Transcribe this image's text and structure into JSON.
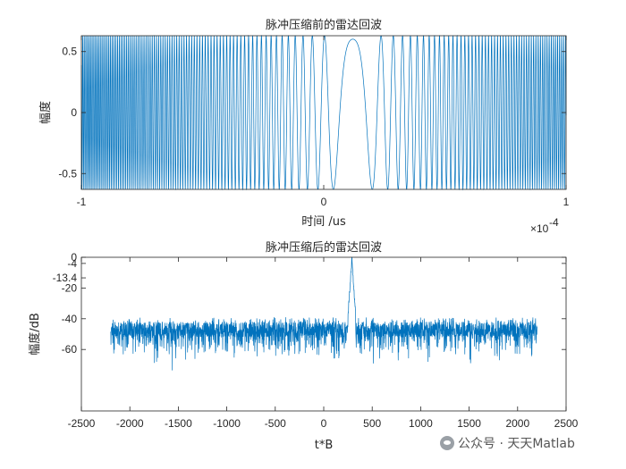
{
  "chart_data": [
    {
      "type": "line",
      "title": "脉冲压缩前的雷达回波",
      "xlabel": "时间 /us",
      "ylabel": "幅度",
      "x_exponent_label": "×10^-4",
      "xlim": [
        -1,
        1
      ],
      "ylim": [
        -0.63,
        0.63
      ],
      "x_ticks": [
        -1,
        0,
        1
      ],
      "x_tick_labels": [
        "-1",
        "0",
        "1"
      ],
      "y_ticks": [
        -0.5,
        0,
        0.5
      ],
      "y_tick_labels": [
        "-0.5",
        "0",
        "0.5"
      ],
      "series": [
        {
          "description": "linear FM chirp echo, amplitude 0.63, center near 0.12e-4",
          "amplitude": 0.63,
          "center": 0.12,
          "signal_start": -1,
          "signal_end": 1,
          "color": "#0072BD"
        }
      ]
    },
    {
      "type": "line",
      "title": "脉冲压缩后的雷达回波",
      "xlabel": "t*B",
      "ylabel": "幅度/dB",
      "xlim": [
        -2500,
        2500
      ],
      "ylim": [
        -100,
        0
      ],
      "x_ticks": [
        -2500,
        -2000,
        -1500,
        -1000,
        -500,
        0,
        500,
        1000,
        1500,
        2000,
        2500
      ],
      "x_tick_labels": [
        "-2500",
        "-2000",
        "-1500",
        "-1000",
        "-500",
        "0",
        "500",
        "1000",
        "1500",
        "2000",
        "2500"
      ],
      "y_ticks": [
        0,
        -4,
        -13.4,
        -20,
        -40,
        -60
      ],
      "y_tick_labels": [
        "0",
        "-4",
        "-13.4",
        "-20",
        "-40",
        "-60"
      ],
      "series": [
        {
          "description": "compressed pulse with noise floor around -45 dB, peak 0 dB at ~290",
          "peak_x": 290,
          "peak_y": 0,
          "noise_floor_top": -40,
          "noise_floor_bottom": -70,
          "x_start": -2200,
          "x_end": 2200,
          "color": "#0072BD"
        }
      ]
    }
  ],
  "watermark": {
    "text": "公众号 · 天天Matlab",
    "icon": "wechat-icon"
  }
}
